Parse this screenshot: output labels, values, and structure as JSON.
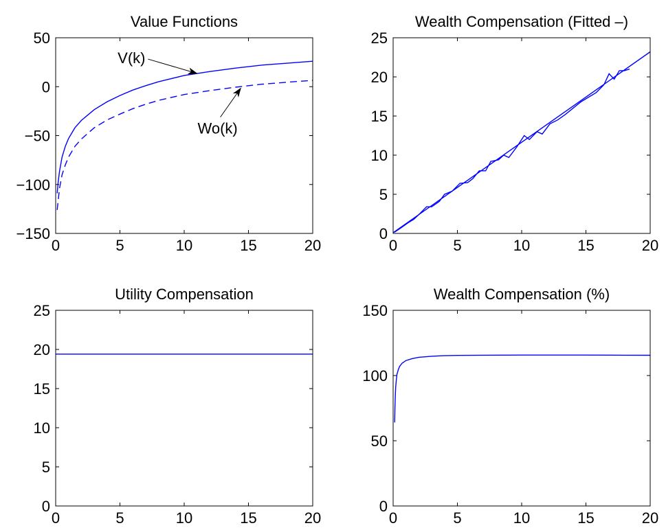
{
  "colors": {
    "series": "#0000ff",
    "axis": "#000000",
    "background": "#ffffff"
  },
  "chart_data": [
    {
      "type": "line",
      "title": "Value Functions",
      "xlabel": "",
      "ylabel": "",
      "xlim": [
        0,
        20
      ],
      "ylim": [
        -150,
        50
      ],
      "xticks": [
        0,
        5,
        10,
        15,
        20
      ],
      "yticks": [
        -150,
        -100,
        -50,
        0,
        50
      ],
      "xtick_labels": [
        "0",
        "5",
        "10",
        "15",
        "20"
      ],
      "ytick_labels": [
        "−150",
        "−100",
        "−50",
        "0",
        "50"
      ],
      "grid": false,
      "series": [
        {
          "style": "solid",
          "x": [
            0.12,
            0.2,
            0.3,
            0.5,
            0.75,
            1,
            1.5,
            2,
            3,
            4,
            5,
            6,
            7,
            8,
            10,
            12,
            14,
            16,
            18,
            20
          ],
          "y": [
            -109,
            -97,
            -86.5,
            -72,
            -61,
            -53,
            -42,
            -34.5,
            -23.5,
            -15.5,
            -9,
            -3.5,
            1,
            5,
            11.5,
            15.5,
            19,
            22,
            24,
            26
          ]
        },
        {
          "style": "dashed",
          "x": [
            0.12,
            0.2,
            0.3,
            0.5,
            0.75,
            1,
            1.5,
            2,
            3,
            4,
            5,
            6,
            7,
            8,
            10,
            12,
            14,
            16,
            18,
            20
          ],
          "y": [
            -126,
            -116,
            -104,
            -90,
            -80,
            -72,
            -61,
            -53.5,
            -42,
            -34,
            -28,
            -22.5,
            -18,
            -14,
            -8,
            -4,
            -0.5,
            2.5,
            4.5,
            6.5
          ]
        }
      ],
      "annotations": [
        {
          "text": "V(k)",
          "x": 5.9,
          "y": 24,
          "arrow_to": [
            11.0,
            13.5
          ]
        },
        {
          "text": "Wo(k)",
          "x": 12.6,
          "y": -48,
          "arrow_to": [
            14.4,
            -1.5
          ]
        }
      ]
    },
    {
      "type": "line",
      "title": "Wealth Compensation (Fitted –)",
      "xlabel": "",
      "ylabel": "",
      "xlim": [
        0,
        20
      ],
      "ylim": [
        0,
        25
      ],
      "xticks": [
        0,
        5,
        10,
        15,
        20
      ],
      "yticks": [
        0,
        5,
        10,
        15,
        20,
        25
      ],
      "xtick_labels": [
        "0",
        "5",
        "10",
        "15",
        "20"
      ],
      "ytick_labels": [
        "0",
        "5",
        "10",
        "15",
        "20",
        "25"
      ],
      "grid": false,
      "series": [
        {
          "style": "solid",
          "x": [
            0,
            20
          ],
          "y": [
            0.1,
            23.2
          ]
        },
        {
          "style": "solid",
          "x": [
            0.1,
            0.6,
            1.2,
            1.6,
            2.0,
            2.6,
            3.0,
            3.6,
            4.0,
            4.6,
            5.2,
            5.8,
            6.2,
            6.7,
            7.2,
            7.6,
            8.2,
            8.6,
            9.0,
            9.6,
            10.2,
            10.6,
            11.2,
            11.6,
            12.2,
            12.8,
            13.4,
            14.0,
            14.6,
            15.2,
            15.8,
            16.4,
            16.8,
            17.2,
            17.6,
            18.0,
            18.4
          ],
          "y": [
            0.15,
            0.7,
            1.4,
            1.8,
            2.4,
            3.4,
            3.4,
            4.1,
            5.0,
            5.4,
            6.4,
            6.5,
            7.0,
            8.0,
            8.0,
            9.2,
            9.4,
            10.0,
            9.7,
            11.0,
            12.5,
            12.0,
            13.0,
            12.7,
            14.0,
            14.5,
            15.2,
            16.0,
            16.8,
            17.4,
            18.0,
            19.0,
            20.4,
            19.7,
            20.8,
            20.8,
            21.0
          ]
        }
      ]
    },
    {
      "type": "line",
      "title": "Utility Compensation",
      "xlabel": "",
      "ylabel": "",
      "xlim": [
        0,
        20
      ],
      "ylim": [
        0,
        25
      ],
      "xticks": [
        0,
        5,
        10,
        15,
        20
      ],
      "yticks": [
        0,
        5,
        10,
        15,
        20,
        25
      ],
      "xtick_labels": [
        "0",
        "5",
        "10",
        "15",
        "20"
      ],
      "ytick_labels": [
        "0",
        "5",
        "10",
        "15",
        "20",
        "25"
      ],
      "grid": false,
      "series": [
        {
          "style": "solid",
          "x": [
            0,
            20
          ],
          "y": [
            19.4,
            19.4
          ]
        }
      ]
    },
    {
      "type": "line",
      "title": "Wealth Compensation (%)",
      "xlabel": "",
      "ylabel": "",
      "xlim": [
        0,
        20
      ],
      "ylim": [
        0,
        150
      ],
      "xticks": [
        0,
        5,
        10,
        15,
        20
      ],
      "yticks": [
        0,
        50,
        100,
        150
      ],
      "xtick_labels": [
        "0",
        "5",
        "10",
        "15",
        "20"
      ],
      "ytick_labels": [
        "0",
        "50",
        "100",
        "150"
      ],
      "grid": false,
      "series": [
        {
          "style": "solid",
          "x": [
            0.12,
            0.14,
            0.17,
            0.2,
            0.25,
            0.3,
            0.4,
            0.5,
            0.7,
            1,
            1.5,
            2,
            3,
            4,
            5,
            7,
            10,
            12,
            15,
            18,
            20
          ],
          "y": [
            64,
            75,
            85,
            91,
            97,
            101,
            104.5,
            107,
            109.5,
            111.5,
            113,
            114,
            114.8,
            115.2,
            115.4,
            115.6,
            115.7,
            115.7,
            115.7,
            115.6,
            115.5
          ]
        }
      ]
    }
  ]
}
